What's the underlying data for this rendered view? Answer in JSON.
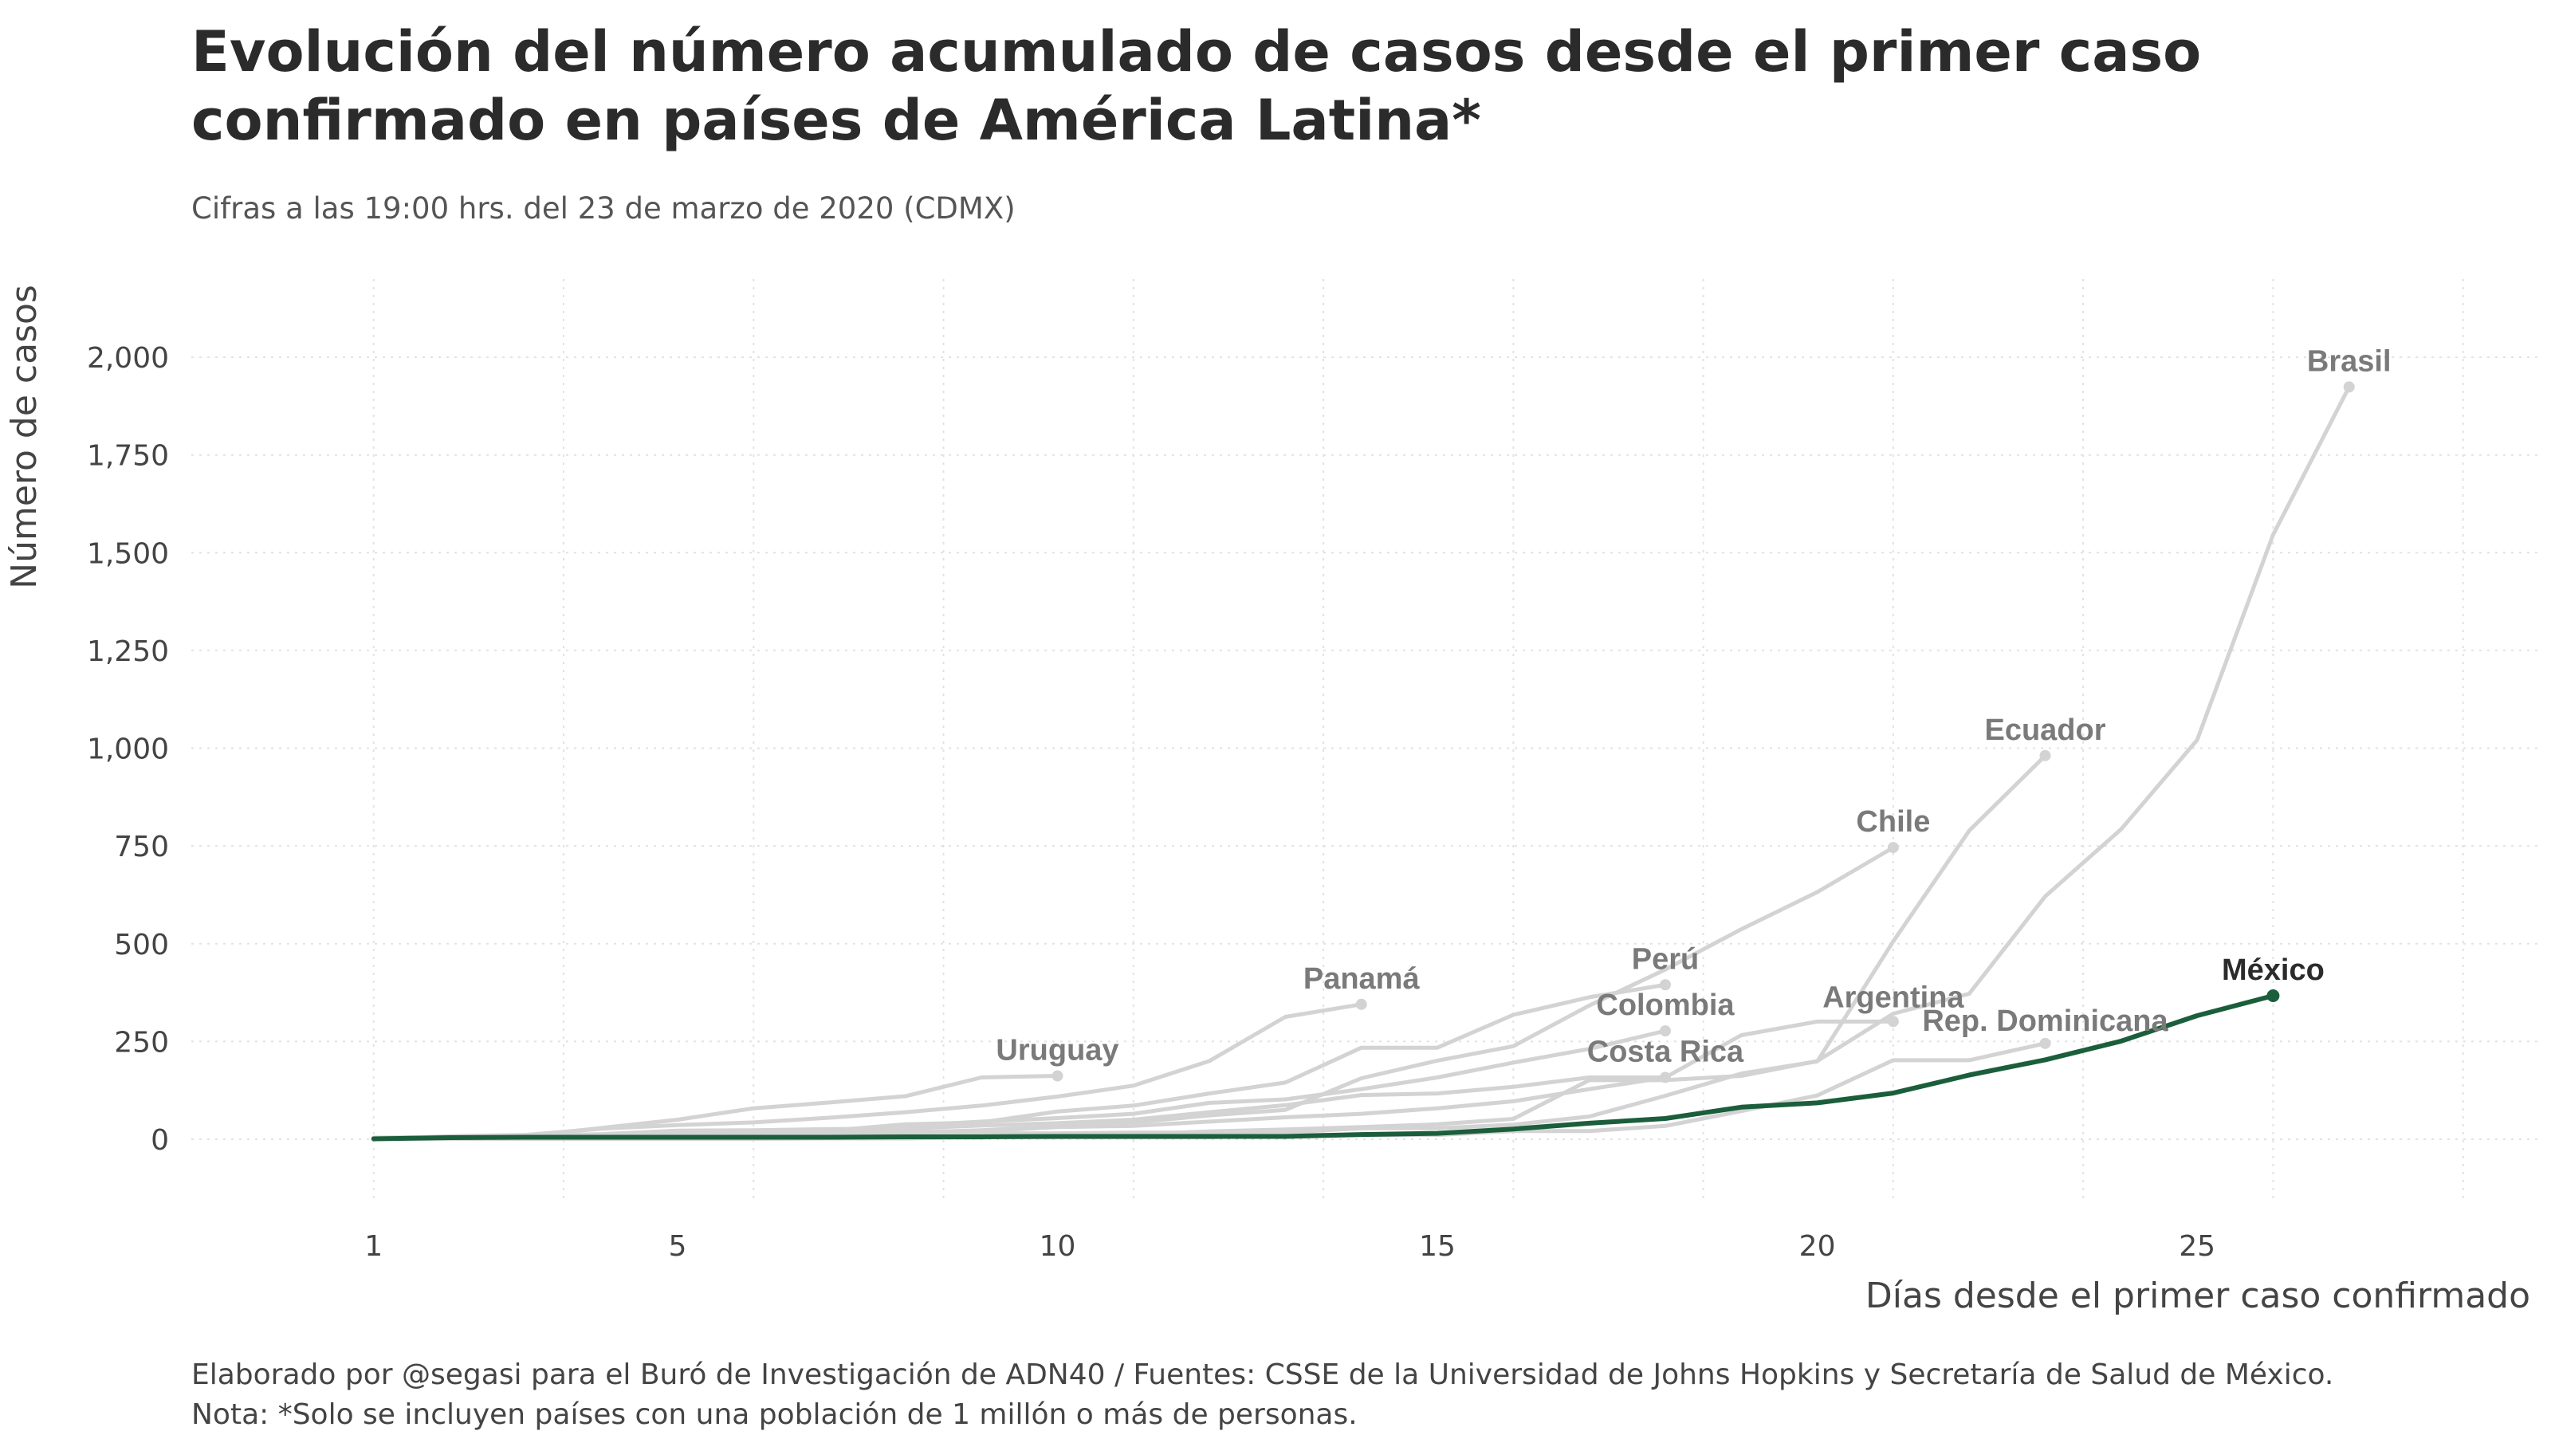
{
  "chart_data": {
    "type": "line",
    "title": "Evolución del número acumulado de casos desde el primer caso confirmado en países de América Latina*",
    "subtitle": "Cifras a las 19:00 hrs. del 23 de marzo de 2020 (CDMX)",
    "xlabel": "Días desde el primer caso confirmado",
    "ylabel": "Número de casos",
    "xlim": [
      -1.4,
      29.5
    ],
    "ylim": [
      -155,
      2200
    ],
    "x_ticks": [
      1,
      5,
      10,
      15,
      20,
      25
    ],
    "x_tick_labels": [
      "1",
      "5",
      "10",
      "15",
      "20",
      "25"
    ],
    "y_ticks": [
      0,
      250,
      500,
      750,
      1000,
      1250,
      1500,
      1750,
      2000
    ],
    "y_tick_labels": [
      "0",
      "250",
      "500",
      "750",
      "1,000",
      "1,250",
      "1,500",
      "1,750",
      "2,000"
    ],
    "grid": true,
    "colors": {
      "background": "#ffffff",
      "context_line": "#d3d3d3",
      "highlight_line": "#1b5e3b",
      "grid": "#e2e2e2"
    },
    "series": [
      {
        "name": "Uruguay",
        "x": [
          1,
          2,
          3,
          4,
          5,
          6,
          7,
          8,
          9,
          10
        ],
        "y": [
          4,
          6,
          8,
          29,
          50,
          79,
          94,
          110,
          158,
          162
        ]
      },
      {
        "name": "Panamá",
        "x": [
          1,
          2,
          3,
          4,
          5,
          6,
          7,
          8,
          9,
          10,
          11,
          12,
          13,
          14
        ],
        "y": [
          1,
          8,
          11,
          27,
          36,
          43,
          55,
          69,
          86,
          109,
          137,
          200,
          313,
          345
        ]
      },
      {
        "name": "Perú",
        "x": [
          1,
          2,
          3,
          4,
          5,
          6,
          7,
          8,
          9,
          10,
          11,
          12,
          13,
          14,
          15,
          16,
          17,
          18
        ],
        "y": [
          1,
          6,
          7,
          9,
          11,
          17,
          22,
          38,
          43,
          71,
          86,
          117,
          145,
          234,
          234,
          318,
          363,
          395
        ]
      },
      {
        "name": "Colombia",
        "x": [
          1,
          2,
          3,
          4,
          5,
          6,
          7,
          8,
          9,
          10,
          11,
          12,
          13,
          14,
          15,
          16,
          17,
          18
        ],
        "y": [
          1,
          3,
          3,
          9,
          9,
          13,
          22,
          34,
          45,
          54,
          65,
          93,
          102,
          128,
          158,
          196,
          231,
          277
        ]
      },
      {
        "name": "Costa Rica",
        "x": [
          1,
          2,
          3,
          4,
          5,
          6,
          7,
          8,
          9,
          10,
          11,
          12,
          13,
          14,
          15,
          16,
          17,
          18
        ],
        "y": [
          1,
          5,
          9,
          13,
          22,
          23,
          26,
          27,
          35,
          41,
          50,
          69,
          87,
          113,
          117,
          134,
          158,
          158
        ]
      },
      {
        "name": "Chile",
        "x": [
          1,
          2,
          3,
          4,
          5,
          6,
          7,
          8,
          9,
          10,
          11,
          12,
          13,
          14,
          15,
          16,
          17,
          18,
          19,
          20,
          21
        ],
        "y": [
          1,
          3,
          4,
          5,
          7,
          8,
          13,
          17,
          23,
          33,
          43,
          61,
          75,
          156,
          201,
          238,
          342,
          434,
          537,
          632,
          746
        ]
      },
      {
        "name": "Argentina",
        "x": [
          1,
          2,
          3,
          4,
          5,
          6,
          7,
          8,
          9,
          10,
          11,
          12,
          13,
          14,
          15,
          16,
          17,
          18,
          19,
          20,
          21
        ],
        "y": [
          1,
          1,
          2,
          8,
          9,
          12,
          17,
          19,
          21,
          31,
          34,
          45,
          56,
          65,
          79,
          97,
          128,
          158,
          266,
          301,
          301
        ]
      },
      {
        "name": "Ecuador",
        "x": [
          1,
          2,
          3,
          4,
          5,
          6,
          7,
          8,
          9,
          10,
          11,
          12,
          13,
          14,
          15,
          16,
          17,
          18,
          19,
          20,
          21,
          22,
          23
        ],
        "y": [
          1,
          6,
          7,
          10,
          13,
          13,
          13,
          14,
          15,
          15,
          17,
          17,
          17,
          28,
          28,
          37,
          58,
          111,
          168,
          199,
          506,
          789,
          981
        ]
      },
      {
        "name": "Rep. Dominicana",
        "x": [
          1,
          2,
          3,
          4,
          5,
          6,
          7,
          8,
          9,
          10,
          11,
          12,
          13,
          14,
          15,
          16,
          17,
          18,
          19,
          20,
          21,
          22,
          23
        ],
        "y": [
          1,
          1,
          1,
          1,
          1,
          1,
          2,
          2,
          5,
          5,
          5,
          5,
          11,
          11,
          11,
          21,
          21,
          34,
          72,
          112,
          202,
          202,
          245
        ]
      },
      {
        "name": "Brasil",
        "x": [
          1,
          2,
          3,
          4,
          5,
          6,
          7,
          8,
          9,
          10,
          11,
          12,
          13,
          14,
          15,
          16,
          17,
          18,
          19,
          20,
          21,
          22,
          23,
          24,
          25,
          26,
          27
        ],
        "y": [
          1,
          1,
          1,
          2,
          2,
          2,
          2,
          4,
          4,
          13,
          13,
          20,
          25,
          31,
          38,
          52,
          151,
          151,
          162,
          200,
          321,
          372,
          621,
          793,
          1021,
          1546,
          1924
        ]
      },
      {
        "name": "México",
        "highlight": true,
        "x": [
          1,
          2,
          3,
          4,
          5,
          6,
          7,
          8,
          9,
          10,
          11,
          12,
          13,
          14,
          15,
          16,
          17,
          18,
          19,
          20,
          21,
          22,
          23,
          24,
          25,
          26
        ],
        "y": [
          1,
          4,
          5,
          5,
          5,
          5,
          5,
          6,
          6,
          7,
          7,
          7,
          7,
          12,
          15,
          26,
          41,
          53,
          82,
          93,
          118,
          164,
          203,
          251,
          316,
          367
        ]
      }
    ],
    "labels": [
      {
        "text": "Uruguay",
        "series": "Uruguay"
      },
      {
        "text": "Panamá",
        "series": "Panamá"
      },
      {
        "text": "Perú",
        "series": "Perú"
      },
      {
        "text": "Colombia",
        "series": "Colombia"
      },
      {
        "text": "Costa Rica",
        "series": "Costa Rica"
      },
      {
        "text": "Chile",
        "series": "Chile"
      },
      {
        "text": "Argentina",
        "series": "Argentina"
      },
      {
        "text": "Ecuador",
        "series": "Ecuador"
      },
      {
        "text": "Rep. Dominicana",
        "series": "Rep. Dominicana"
      },
      {
        "text": "Brasil",
        "series": "Brasil"
      },
      {
        "text": "México",
        "series": "México"
      }
    ]
  },
  "caption": {
    "line1": "Elaborado por @segasi para el Buró de Investigación de ADN40 / Fuentes: CSSE de la Universidad de Johns Hopkins y Secretaría de Salud de México.",
    "line2": "Nota: *Solo se incluyen países con una población de 1 millón o más de personas."
  }
}
